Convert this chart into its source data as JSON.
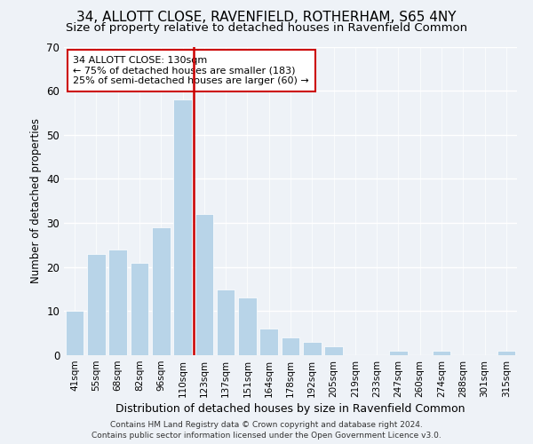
{
  "title": "34, ALLOTT CLOSE, RAVENFIELD, ROTHERHAM, S65 4NY",
  "subtitle": "Size of property relative to detached houses in Ravenfield Common",
  "xlabel": "Distribution of detached houses by size in Ravenfield Common",
  "ylabel": "Number of detached properties",
  "bar_color": "#b8d4e8",
  "bar_edge_color": "#ffffff",
  "categories": [
    "41sqm",
    "55sqm",
    "68sqm",
    "82sqm",
    "96sqm",
    "110sqm",
    "123sqm",
    "137sqm",
    "151sqm",
    "164sqm",
    "178sqm",
    "192sqm",
    "205sqm",
    "219sqm",
    "233sqm",
    "247sqm",
    "260sqm",
    "274sqm",
    "288sqm",
    "301sqm",
    "315sqm"
  ],
  "values": [
    10,
    23,
    24,
    21,
    29,
    58,
    32,
    15,
    13,
    6,
    4,
    3,
    2,
    0,
    0,
    1,
    0,
    1,
    0,
    0,
    1
  ],
  "ylim": [
    0,
    70
  ],
  "yticks": [
    0,
    10,
    20,
    30,
    40,
    50,
    60,
    70
  ],
  "vline_color": "#cc0000",
  "annotation_title": "34 ALLOTT CLOSE: 130sqm",
  "annotation_line1": "← 75% of detached houses are smaller (183)",
  "annotation_line2": "25% of semi-detached houses are larger (60) →",
  "annotation_box_color": "#ffffff",
  "annotation_box_edge": "#cc0000",
  "footnote1": "Contains HM Land Registry data © Crown copyright and database right 2024.",
  "footnote2": "Contains public sector information licensed under the Open Government Licence v3.0.",
  "background_color": "#eef2f7",
  "title_fontsize": 11,
  "subtitle_fontsize": 9.5,
  "xlabel_fontsize": 9,
  "ylabel_fontsize": 8.5,
  "annotation_fontsize": 8,
  "footnote_fontsize": 6.5
}
